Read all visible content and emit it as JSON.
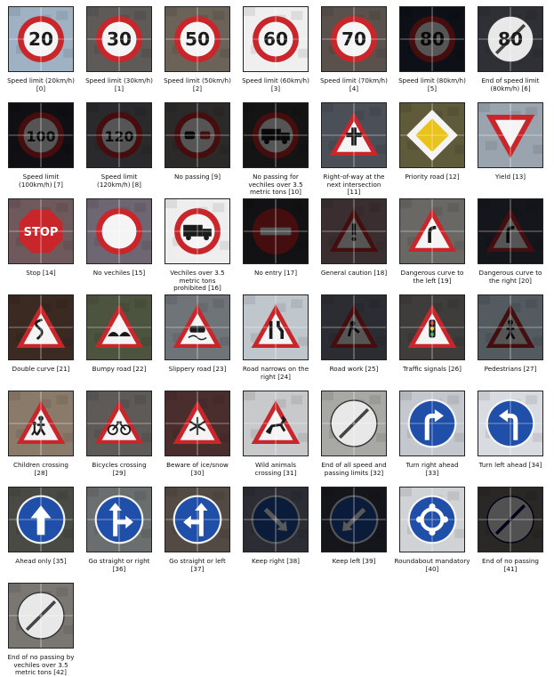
{
  "signs": [
    {
      "label": "Speed limit (20km/h)\n[0]",
      "bg": "#9fb2c4",
      "shape": "circle-red",
      "glyph": "20",
      "dark": false
    },
    {
      "label": "Speed limit (30km/h)\n[1]",
      "bg": "#5d5a58",
      "shape": "circle-red",
      "glyph": "30",
      "dark": false
    },
    {
      "label": "Speed limit (50km/h)\n[2]",
      "bg": "#6b6258",
      "shape": "circle-red",
      "glyph": "50",
      "dark": false
    },
    {
      "label": "Speed limit (60km/h)\n[3]",
      "bg": "#efefef",
      "shape": "circle-red",
      "glyph": "60",
      "dark": false
    },
    {
      "label": "Speed limit (70km/h)\n[4]",
      "bg": "#5a514c",
      "shape": "circle-red",
      "glyph": "70",
      "dark": false
    },
    {
      "label": "Speed limit (80km/h)\n[5]",
      "bg": "#0e1018",
      "shape": "circle-red",
      "glyph": "80",
      "dark": true
    },
    {
      "label": "End of speed limit\n(80km/h) [6]",
      "bg": "#2f3036",
      "shape": "end",
      "glyph": "80",
      "dark": false
    },
    {
      "label": "Speed limit\n(100km/h) [7]",
      "bg": "#101014",
      "shape": "circle-red",
      "glyph": "100",
      "dark": true
    },
    {
      "label": "Speed limit\n(120km/h) [8]",
      "bg": "#2a2a2d",
      "shape": "circle-red",
      "glyph": "120",
      "dark": true
    },
    {
      "label": "No passing [9]",
      "bg": "#2c2a29",
      "shape": "circle-red",
      "glyph": "cars",
      "dark": true
    },
    {
      "label": "No passing for\nvechiles over 3.5\nmetric tons [10]",
      "bg": "#151414",
      "shape": "circle-red",
      "glyph": "truck",
      "dark": true
    },
    {
      "label": "Right-of-way at the\nnext intersection\n[11]",
      "bg": "#4a4f58",
      "shape": "triangle",
      "glyph": "cross",
      "dark": false
    },
    {
      "label": "Priority road [12]",
      "bg": "#5e5a3a",
      "shape": "diamond",
      "glyph": "",
      "dark": false
    },
    {
      "label": "Yield [13]",
      "bg": "#9aa4ae",
      "shape": "yield",
      "glyph": "",
      "dark": false
    },
    {
      "label": "Stop [14]",
      "bg": "#6e5a5c",
      "shape": "stop",
      "glyph": "STOP",
      "dark": false
    },
    {
      "label": "No vechiles [15]",
      "bg": "#6e6672",
      "shape": "circle-red",
      "glyph": "",
      "dark": false
    },
    {
      "label": "Vechiles over 3.5\nmetric tons\nprohibited [16]",
      "bg": "#eeeeee",
      "shape": "circle-red",
      "glyph": "truck",
      "dark": false
    },
    {
      "label": "No entry [17]",
      "bg": "#121214",
      "shape": "noentry",
      "glyph": "",
      "dark": true
    },
    {
      "label": "General caution [18]",
      "bg": "#3a2e30",
      "shape": "triangle",
      "glyph": "!",
      "dark": true
    },
    {
      "label": "Dangerous curve to\nthe left [19]",
      "bg": "#6a6864",
      "shape": "triangle",
      "glyph": "curve",
      "dark": false
    },
    {
      "label": "Dangerous curve to\nthe right [20]",
      "bg": "#14161c",
      "shape": "triangle",
      "glyph": "curve",
      "dark": true
    },
    {
      "label": "Double curve [21]",
      "bg": "#3a2a22",
      "shape": "triangle",
      "glyph": "dcurve",
      "dark": false
    },
    {
      "label": "Bumpy road [22]",
      "bg": "#4c5440",
      "shape": "triangle",
      "glyph": "bump",
      "dark": false
    },
    {
      "label": "Slippery road [23]",
      "bg": "#6f7478",
      "shape": "triangle",
      "glyph": "car",
      "dark": false
    },
    {
      "label": "Road narrows on the\nright [24]",
      "bg": "#bfc6cc",
      "shape": "triangle",
      "glyph": "narrow",
      "dark": false
    },
    {
      "label": "Road work [25]",
      "bg": "#2c2d33",
      "shape": "triangle",
      "glyph": "work",
      "dark": true
    },
    {
      "label": "Traffic signals [26]",
      "bg": "#3f3d3c",
      "shape": "triangle",
      "glyph": "lights",
      "dark": false
    },
    {
      "label": "Pedestrians [27]",
      "bg": "#535a60",
      "shape": "triangle",
      "glyph": "ped",
      "dark": true
    },
    {
      "label": "Children crossing\n[28]",
      "bg": "#8a7a6a",
      "shape": "triangle",
      "glyph": "kids",
      "dark": false
    },
    {
      "label": "Bicycles crossing\n[29]",
      "bg": "#5e5a58",
      "shape": "triangle",
      "glyph": "bike",
      "dark": false
    },
    {
      "label": "Beware of ice/snow\n[30]",
      "bg": "#4a2e2e",
      "shape": "triangle",
      "glyph": "snow",
      "dark": false
    },
    {
      "label": "Wild animals\ncrossing [31]",
      "bg": "#c7c9cb",
      "shape": "triangle",
      "glyph": "deer",
      "dark": false
    },
    {
      "label": "End of all speed and\npassing limits [32]",
      "bg": "#a8a8a4",
      "shape": "end",
      "glyph": "",
      "dark": false
    },
    {
      "label": "Turn right ahead\n[33]",
      "bg": "#c4c8ce",
      "shape": "circle-blue",
      "glyph": "turn-right",
      "dark": false
    },
    {
      "label": "Turn left ahead [34]",
      "bg": "#d8dbe0",
      "shape": "circle-blue",
      "glyph": "turn-left",
      "dark": false
    },
    {
      "label": "Ahead only [35]",
      "bg": "#4a4a44",
      "shape": "circle-blue",
      "glyph": "up",
      "dark": false
    },
    {
      "label": "Go straight or right\n[36]",
      "bg": "#6b6e6e",
      "shape": "circle-blue",
      "glyph": "up-right",
      "dark": false
    },
    {
      "label": "Go straight or left\n[37]",
      "bg": "#544a44",
      "shape": "circle-blue",
      "glyph": "up-left",
      "dark": false
    },
    {
      "label": "Keep right [38]",
      "bg": "#2c2c34",
      "shape": "circle-blue",
      "glyph": "keep-right",
      "dark": true
    },
    {
      "label": "Keep left [39]",
      "bg": "#15151c",
      "shape": "circle-blue",
      "glyph": "keep-left",
      "dark": true
    },
    {
      "label": "Roundabout mandatory\n[40]",
      "bg": "#d0d2d6",
      "shape": "circle-blue",
      "glyph": "round",
      "dark": false
    },
    {
      "label": "End of no passing\n[41]",
      "bg": "#2a2826",
      "shape": "end",
      "glyph": "",
      "dark": true
    },
    {
      "label": "End of no passing by\nvechiles over 3.5\nmetric tons [42]",
      "bg": "#7a7672",
      "shape": "end",
      "glyph": "",
      "dark": false
    }
  ]
}
